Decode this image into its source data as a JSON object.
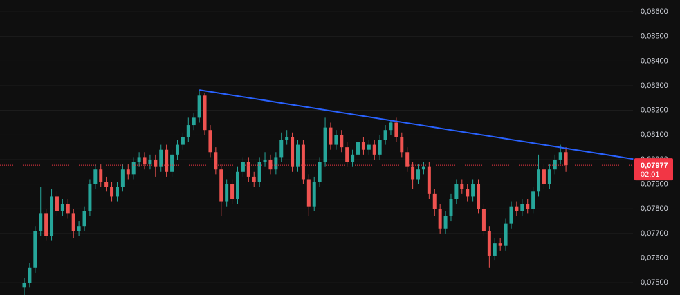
{
  "chart_data": {
    "type": "candlestick",
    "up_color": "#26a69a",
    "down_color": "#ef5350",
    "grid": true,
    "categories": [
      null,
      null,
      null,
      null,
      null,
      null,
      null,
      null,
      null,
      null,
      null,
      null,
      null,
      null,
      null,
      null,
      null,
      null,
      null,
      null,
      null,
      null,
      null,
      null,
      null,
      null,
      null,
      null,
      null,
      null,
      null,
      null,
      null,
      null,
      null,
      null,
      null,
      null,
      null,
      null,
      null,
      null,
      null,
      null,
      null,
      null,
      null,
      null,
      null,
      null,
      null,
      null,
      null,
      null,
      null,
      null,
      null,
      null,
      null,
      null,
      null,
      null,
      null,
      null,
      null,
      null,
      null,
      null,
      null,
      null,
      null,
      null,
      null,
      null,
      null,
      null,
      null,
      null,
      null,
      null,
      null,
      null,
      null,
      null,
      null,
      null,
      null,
      null,
      null,
      null,
      null,
      null,
      null,
      null,
      null,
      null,
      null,
      null,
      null,
      null
    ],
    "open": [
      0.0748,
      0.075,
      0.0756,
      0.0771,
      0.0778,
      0.0769,
      0.0785,
      0.0779,
      0.0782,
      0.0778,
      0.0771,
      0.0773,
      0.0779,
      0.079,
      0.0796,
      0.0791,
      0.0789,
      0.0785,
      0.0789,
      0.0796,
      0.0794,
      0.0799,
      0.0801,
      0.0798,
      0.08,
      0.0797,
      0.0804,
      0.0795,
      0.0802,
      0.0806,
      0.0809,
      0.0814,
      0.0817,
      0.0826,
      0.0812,
      0.0803,
      0.0796,
      0.0783,
      0.079,
      0.0784,
      0.0795,
      0.0799,
      0.0793,
      0.0791,
      0.0799,
      0.08,
      0.0796,
      0.0801,
      0.0808,
      0.0809,
      0.0797,
      0.0806,
      0.0792,
      0.0781,
      0.0791,
      0.0799,
      0.0813,
      0.0806,
      0.081,
      0.0805,
      0.0799,
      0.0802,
      0.0807,
      0.0804,
      0.0806,
      0.0802,
      0.0808,
      0.0812,
      0.0815,
      0.0809,
      0.0803,
      0.0797,
      0.0792,
      0.0796,
      0.0797,
      0.0786,
      0.078,
      0.0772,
      0.0777,
      0.0784,
      0.079,
      0.0788,
      0.0785,
      0.079,
      0.078,
      0.0771,
      0.0761,
      0.0766,
      0.0765,
      0.0774,
      0.0781,
      0.0779,
      0.0782,
      0.078,
      0.0787,
      0.0796,
      0.079,
      0.0796,
      0.08,
      0.0803
    ],
    "high": [
      0.0752,
      0.0758,
      0.0773,
      0.0789,
      0.078,
      0.0788,
      0.0787,
      0.0784,
      0.0784,
      0.078,
      0.0775,
      0.0781,
      0.0792,
      0.0798,
      0.0798,
      0.0793,
      0.0791,
      0.0791,
      0.0798,
      0.0798,
      0.0801,
      0.0803,
      0.0803,
      0.0802,
      0.0802,
      0.0806,
      0.0806,
      0.0804,
      0.0808,
      0.0811,
      0.0817,
      0.0819,
      0.0828,
      0.0827,
      0.0814,
      0.0805,
      0.0798,
      0.0792,
      0.0792,
      0.0797,
      0.0801,
      0.0801,
      0.0795,
      0.0801,
      0.0803,
      0.0802,
      0.0803,
      0.0811,
      0.0812,
      0.0811,
      0.0808,
      0.0808,
      0.0794,
      0.0793,
      0.0801,
      0.0817,
      0.0815,
      0.0812,
      0.0812,
      0.0807,
      0.0804,
      0.0809,
      0.0809,
      0.0808,
      0.0808,
      0.081,
      0.0814,
      0.0816,
      0.0817,
      0.0811,
      0.0805,
      0.0799,
      0.0798,
      0.0799,
      0.0799,
      0.0788,
      0.0782,
      0.0779,
      0.0786,
      0.0792,
      0.0792,
      0.079,
      0.0792,
      0.0792,
      0.0782,
      0.0773,
      0.0768,
      0.0768,
      0.0776,
      0.0783,
      0.0783,
      0.0784,
      0.0784,
      0.0789,
      0.0802,
      0.0798,
      0.0798,
      0.0802,
      0.0806,
      0.0805
    ],
    "low": [
      0.0745,
      0.0748,
      0.0754,
      0.0769,
      0.0767,
      0.0767,
      0.0777,
      0.0777,
      0.0776,
      0.0768,
      0.0769,
      0.0771,
      0.0777,
      0.0788,
      0.0789,
      0.0787,
      0.0783,
      0.0783,
      0.0787,
      0.0792,
      0.0792,
      0.0797,
      0.0796,
      0.0796,
      0.0793,
      0.0795,
      0.0793,
      0.0793,
      0.08,
      0.0804,
      0.0807,
      0.0812,
      0.0815,
      0.081,
      0.0801,
      0.0794,
      0.0777,
      0.0781,
      0.0782,
      0.0782,
      0.0793,
      0.0791,
      0.0789,
      0.0789,
      0.0797,
      0.0794,
      0.0794,
      0.0799,
      0.0806,
      0.0795,
      0.0795,
      0.079,
      0.0777,
      0.0779,
      0.0789,
      0.0797,
      0.0804,
      0.0804,
      0.0803,
      0.0797,
      0.0797,
      0.08,
      0.0802,
      0.0802,
      0.08,
      0.08,
      0.0806,
      0.081,
      0.0807,
      0.0801,
      0.0795,
      0.0788,
      0.079,
      0.0794,
      0.0784,
      0.0777,
      0.077,
      0.077,
      0.0775,
      0.0782,
      0.0786,
      0.0783,
      0.0783,
      0.0778,
      0.0769,
      0.0756,
      0.0759,
      0.0763,
      0.0763,
      0.0772,
      0.0777,
      0.0777,
      0.0778,
      0.0778,
      0.0785,
      0.0788,
      0.0788,
      0.0794,
      0.0798,
      0.0795
    ],
    "close": [
      0.075,
      0.0756,
      0.0771,
      0.0778,
      0.0769,
      0.0785,
      0.0779,
      0.0782,
      0.0778,
      0.0771,
      0.0773,
      0.0779,
      0.079,
      0.0796,
      0.0791,
      0.0789,
      0.0785,
      0.0789,
      0.0796,
      0.0794,
      0.0799,
      0.0801,
      0.0798,
      0.08,
      0.0797,
      0.0804,
      0.0795,
      0.0802,
      0.0806,
      0.0809,
      0.0814,
      0.0817,
      0.0826,
      0.0812,
      0.0803,
      0.0796,
      0.0783,
      0.079,
      0.0784,
      0.0795,
      0.0799,
      0.0793,
      0.0791,
      0.0799,
      0.08,
      0.0796,
      0.0801,
      0.0808,
      0.0809,
      0.0797,
      0.0806,
      0.0792,
      0.0781,
      0.0791,
      0.0799,
      0.0813,
      0.0806,
      0.081,
      0.0805,
      0.0799,
      0.0802,
      0.0807,
      0.0804,
      0.0806,
      0.0802,
      0.0808,
      0.0812,
      0.0815,
      0.0809,
      0.0803,
      0.0797,
      0.0792,
      0.0796,
      0.0797,
      0.0786,
      0.078,
      0.0772,
      0.0777,
      0.0784,
      0.079,
      0.0788,
      0.0785,
      0.079,
      0.078,
      0.0771,
      0.0761,
      0.0766,
      0.0765,
      0.0774,
      0.0781,
      0.0779,
      0.0782,
      0.078,
      0.0787,
      0.0796,
      0.079,
      0.0796,
      0.08,
      0.0803,
      0.07977
    ],
    "ylim": [
      0.0745,
      0.08648
    ],
    "yticks": [
      {
        "value": 0.075,
        "label": "0,07500"
      },
      {
        "value": 0.076,
        "label": "0,07600"
      },
      {
        "value": 0.077,
        "label": "0,07700"
      },
      {
        "value": 0.078,
        "label": "0,07800"
      },
      {
        "value": 0.079,
        "label": "0,07900"
      },
      {
        "value": 0.08,
        "label": "0,08000"
      },
      {
        "value": 0.081,
        "label": "0,08100"
      },
      {
        "value": 0.082,
        "label": "0,08200"
      },
      {
        "value": 0.083,
        "label": "0,08300"
      },
      {
        "value": 0.084,
        "label": "0,08400"
      },
      {
        "value": 0.085,
        "label": "0,08500"
      },
      {
        "value": 0.086,
        "label": "0,08600"
      }
    ],
    "trendline": {
      "x": [
        32,
        111.3
      ],
      "y": [
        0.08283,
        0.08002
      ],
      "color": "#2962ff"
    },
    "last_price": {
      "value": 0.07977,
      "label": "0,07977",
      "countdown": "02:01",
      "color": "#f23645"
    }
  }
}
